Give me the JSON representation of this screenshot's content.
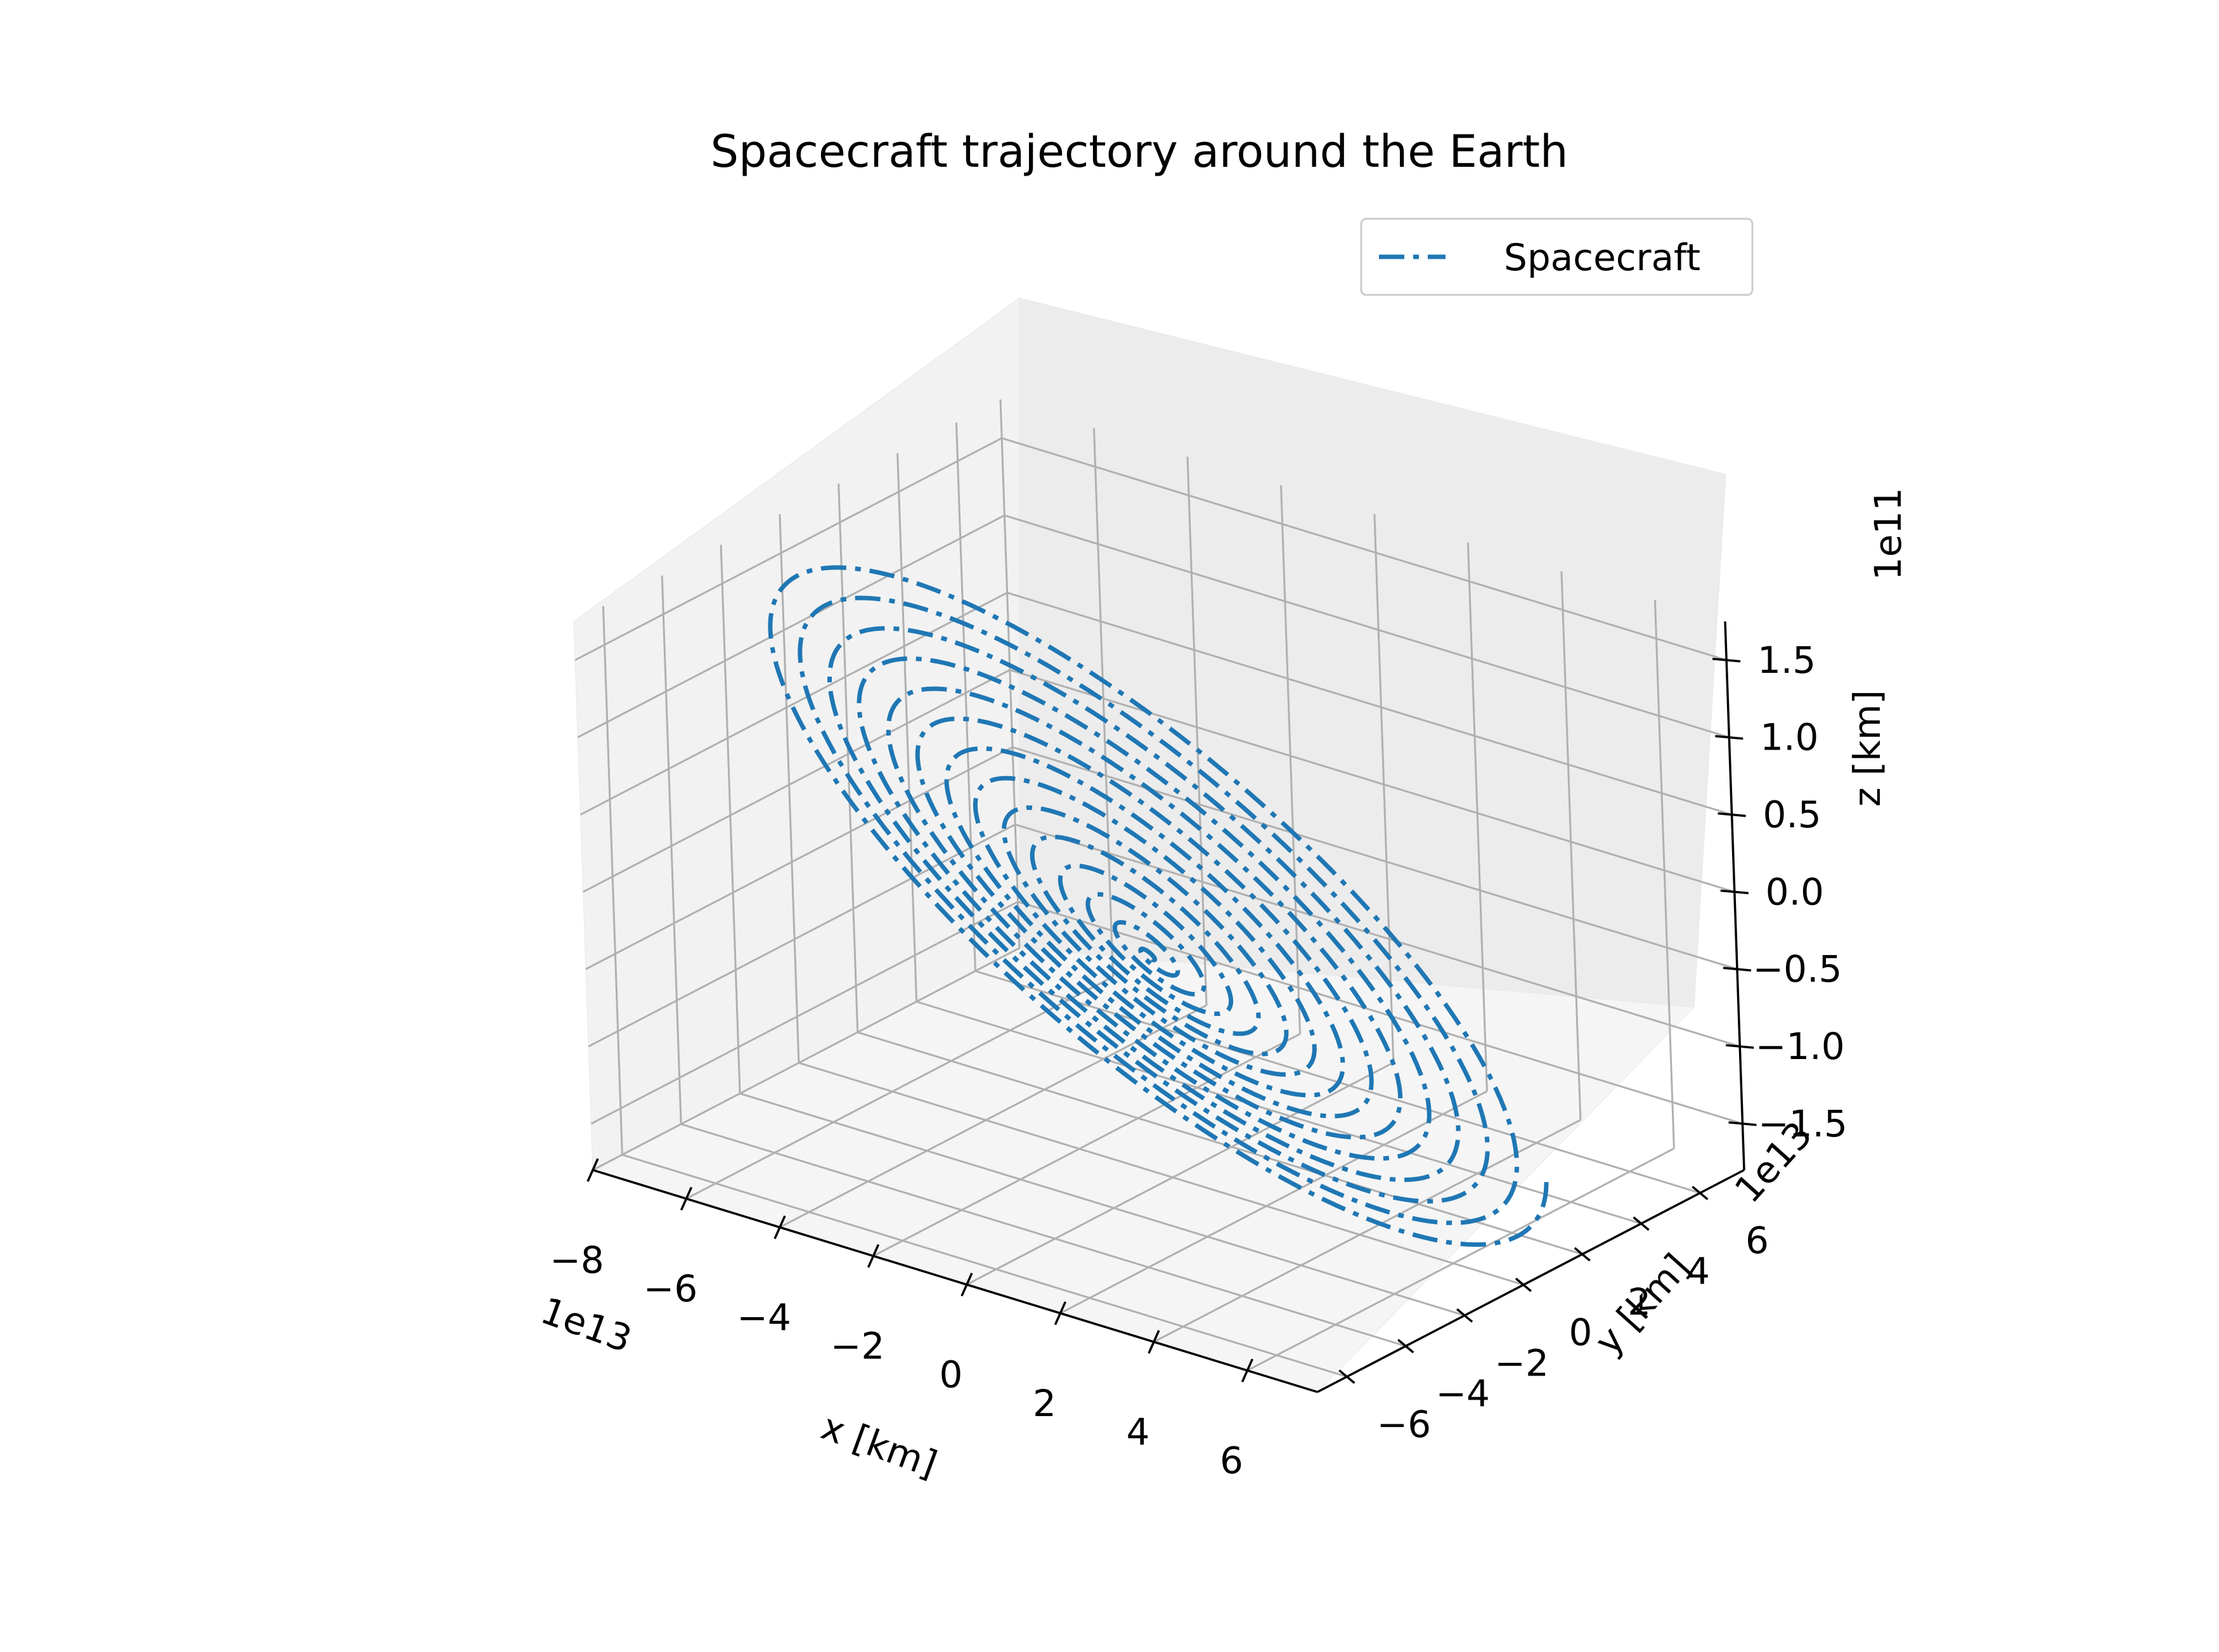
{
  "chart_data": {
    "type": "line",
    "projection": "3d",
    "title": "Spacecraft trajectory around the Earth",
    "xlabel": "x [km]",
    "ylabel": "y [km]",
    "zlabel": "z [km]",
    "x_offset_text": "1e13",
    "y_offset_text": "1e13",
    "z_offset_text": "1e11",
    "xlim": [
      -8,
      7.5
    ],
    "ylim": [
      -7,
      7.5
    ],
    "zlim": [
      -1.8,
      1.75
    ],
    "x_ticks": [
      "−8",
      "−6",
      "−4",
      "−2",
      "0",
      "2",
      "4",
      "6"
    ],
    "y_ticks": [
      "−6",
      "−4",
      "−2",
      "0",
      "2",
      "4",
      "6"
    ],
    "z_ticks": [
      "−1.5",
      "−1.0",
      "−0.5",
      "0.0",
      "0.5",
      "1.0",
      "1.5"
    ],
    "grid": true,
    "legend_position": "top-right",
    "series": [
      {
        "name": "Spacecraft",
        "color": "#1f77b4",
        "linestyle": "dashdot",
        "shape": "expanding spiral in an inclined plane, centred near the origin",
        "max_radius_xy": 7.0,
        "turns": 14,
        "max_abs_z": 1.8
      }
    ]
  }
}
